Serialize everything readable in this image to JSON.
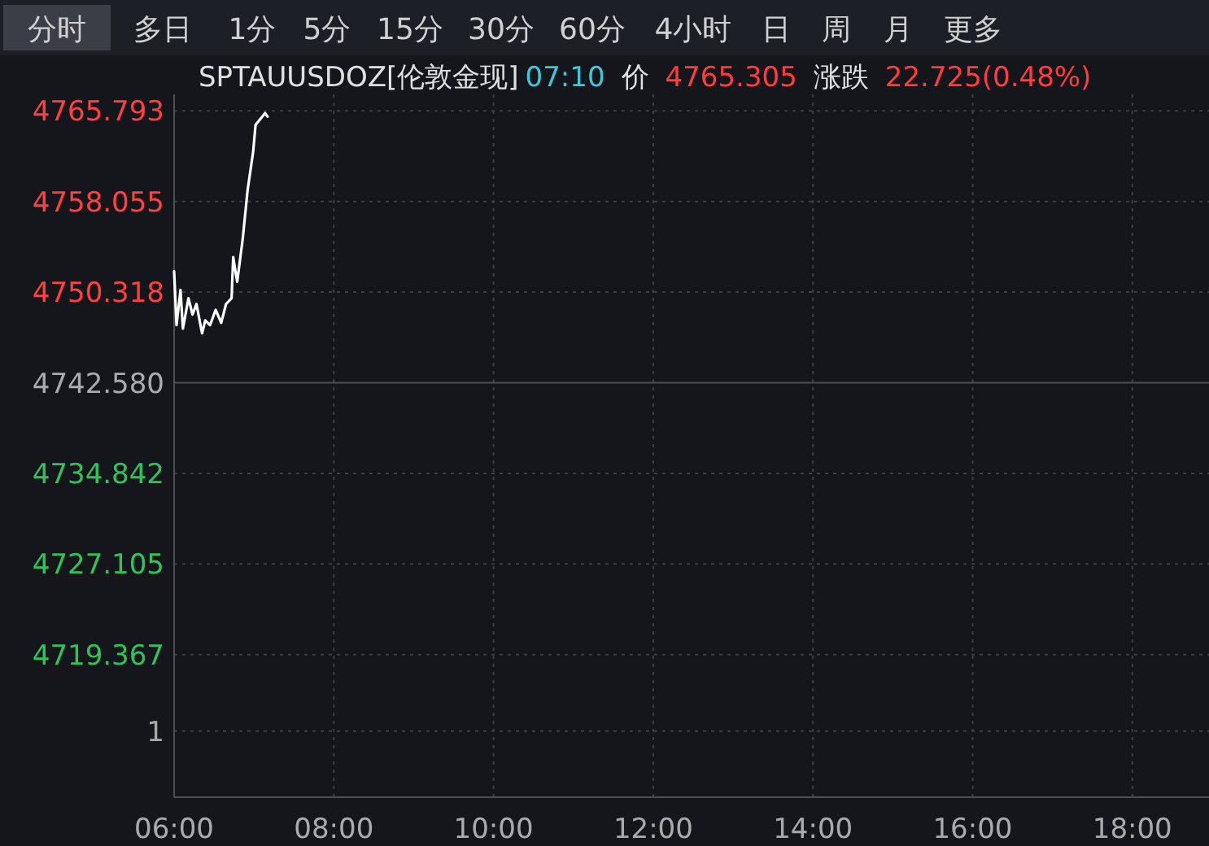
{
  "chart_data": {
    "type": "line",
    "title": "SPTAUUSDOZ[伦敦金现]",
    "annotations": [
      "分时",
      "多日",
      "1分",
      "5分",
      "15分",
      "30分",
      "60分",
      "4小时",
      "日",
      "周",
      "月",
      "更多",
      "07:10",
      "价",
      "4765.305",
      "涨跌",
      "22.725(0.48%)",
      "1"
    ],
    "series": [
      {
        "color": "#ffffff",
        "x": [
          6.0,
          6.03,
          6.08,
          6.11,
          6.18,
          6.23,
          6.28,
          6.35,
          6.39,
          6.45,
          6.52,
          6.59,
          6.65,
          6.72,
          6.74,
          6.79,
          6.86,
          6.92,
          6.99,
          7.02,
          7.14,
          7.17
        ],
        "values": [
          4752.1,
          4747.5,
          4750.5,
          4747.2,
          4749.8,
          4748.4,
          4749.3,
          4746.8,
          4747.9,
          4747.5,
          4748.8,
          4747.7,
          4749.3,
          4749.8,
          4753.3,
          4751.2,
          4754.9,
          4759.0,
          4762.3,
          4764.6,
          4765.6,
          4765.3
        ]
      }
    ],
    "xlim": [
      6,
      18.96
    ],
    "ylim": [
      4707.2,
      4767.2
    ],
    "xticks": [
      {
        "value": 6,
        "label": "06:00"
      },
      {
        "value": 8,
        "label": "08:00"
      },
      {
        "value": 10,
        "label": "10:00"
      },
      {
        "value": 12,
        "label": "12:00"
      },
      {
        "value": 14,
        "label": "14:00"
      },
      {
        "value": 16,
        "label": "16:00"
      },
      {
        "value": 18,
        "label": "18:00"
      }
    ],
    "yticks": [
      {
        "value": 4765.793,
        "label": "4765.793"
      },
      {
        "value": 4758.055,
        "label": "4758.055"
      },
      {
        "value": 4750.318,
        "label": "4750.318"
      },
      {
        "value": 4742.58,
        "label": "4742.580"
      },
      {
        "value": 4734.842,
        "label": "4734.842"
      },
      {
        "value": 4727.105,
        "label": "4727.105"
      },
      {
        "value": 4719.367,
        "label": "4719.367"
      },
      {
        "value": 4712.84,
        "label": null
      }
    ],
    "ref_lines": [
      {
        "axis": "y",
        "value": 4742.58,
        "color": "#4a4e57",
        "line_style": "solid"
      }
    ],
    "grid": true,
    "marker": "none",
    "line_style": "solid"
  }
}
